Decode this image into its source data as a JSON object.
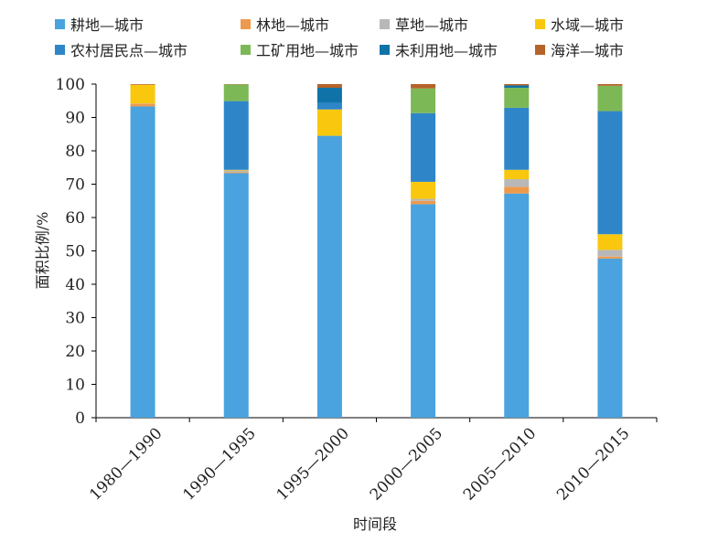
{
  "chart_data": {
    "type": "bar",
    "stacked": true,
    "categories": [
      "1980—1990",
      "1990—1995",
      "1995—2000",
      "2000—2005",
      "2005—2010",
      "2010—2015"
    ],
    "ylabel": "面积比例/%",
    "xlabel": "时间段",
    "ylim": [
      0,
      100
    ],
    "yticks": [
      "0",
      "10",
      "20",
      "30",
      "40",
      "50",
      "60",
      "70",
      "80",
      "90",
      "100"
    ],
    "legend_position": "top",
    "series": [
      {
        "name": "耕地—城市",
        "color": "#4aa3de",
        "values": [
          93.3,
          73.3,
          84.5,
          64.0,
          67.2,
          47.7
        ]
      },
      {
        "name": "林地—城市",
        "color": "#ee9a4d",
        "values": [
          0.8,
          0.3,
          0.0,
          1.0,
          2.0,
          0.6
        ]
      },
      {
        "name": "草地—城市",
        "color": "#b8b8b8",
        "values": [
          0.1,
          0.5,
          0.0,
          0.6,
          2.3,
          2.0
        ]
      },
      {
        "name": "水域—城市",
        "color": "#f9c80e",
        "values": [
          5.6,
          0.2,
          7.9,
          5.1,
          2.8,
          4.7
        ]
      },
      {
        "name": "农村居民点—城市",
        "color": "#2e86c9",
        "values": [
          0.0,
          20.6,
          2.0,
          20.6,
          18.6,
          36.9
        ]
      },
      {
        "name": "工矿用地—城市",
        "color": "#7db856",
        "values": [
          0.0,
          5.0,
          0.0,
          7.4,
          6.0,
          7.6
        ]
      },
      {
        "name": "未利用地—城市",
        "color": "#0f73a8",
        "values": [
          0.0,
          0.0,
          4.5,
          0.0,
          0.7,
          0.0
        ]
      },
      {
        "name": "海洋—城市",
        "color": "#b5642a",
        "values": [
          0.2,
          0.1,
          1.1,
          1.3,
          0.4,
          0.5
        ]
      }
    ]
  }
}
